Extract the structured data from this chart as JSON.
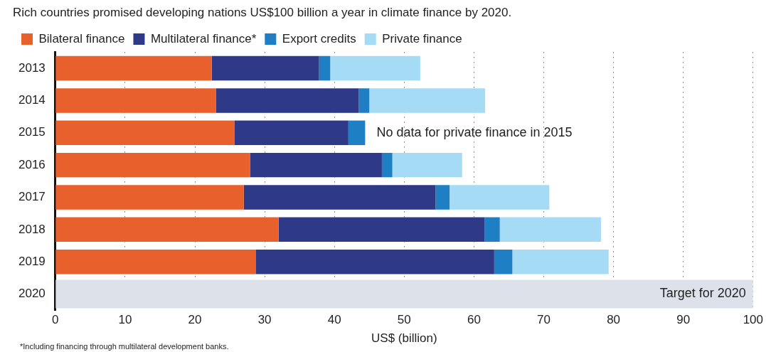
{
  "chart_data": {
    "type": "bar",
    "orientation": "horizontal",
    "stacked": true,
    "title": "Rich countries promised developing nations US$100 billion a year in climate finance by 2020.",
    "xlabel": "US$ (billion)",
    "categories": [
      "2013",
      "2014",
      "2015",
      "2016",
      "2017",
      "2018",
      "2019",
      "2020"
    ],
    "series": [
      {
        "name": "Bilateral finance",
        "color": "#e8602c",
        "values": [
          22.4,
          23.0,
          25.7,
          27.9,
          27.0,
          32.0,
          28.7,
          null
        ]
      },
      {
        "name": "Multilateral finance*",
        "color": "#2e3a87",
        "values": [
          15.4,
          20.5,
          16.3,
          18.9,
          27.5,
          29.5,
          34.2,
          null
        ]
      },
      {
        "name": "Export credits",
        "color": "#1f7fc4",
        "values": [
          1.6,
          1.5,
          2.4,
          1.5,
          2.0,
          2.2,
          2.6,
          null
        ]
      },
      {
        "name": "Private finance",
        "color": "#a6dbf5",
        "values": [
          12.9,
          16.6,
          null,
          10.0,
          14.3,
          14.5,
          13.8,
          null
        ]
      },
      {
        "color": "#dde2ea",
        "values": [
          null,
          null,
          null,
          null,
          null,
          null,
          null,
          100
        ]
      }
    ],
    "xlim": [
      0,
      100
    ],
    "xticks": [
      0,
      10,
      20,
      30,
      40,
      50,
      60,
      70,
      80,
      90,
      100
    ],
    "grid": "x",
    "legend": "top left",
    "annotations": [
      "No data for private finance in 2015",
      {
        "text": "Target for 2020",
        "x": 100,
        "y": "2020"
      },
      "*Including financing through multilateral development banks."
    ]
  }
}
